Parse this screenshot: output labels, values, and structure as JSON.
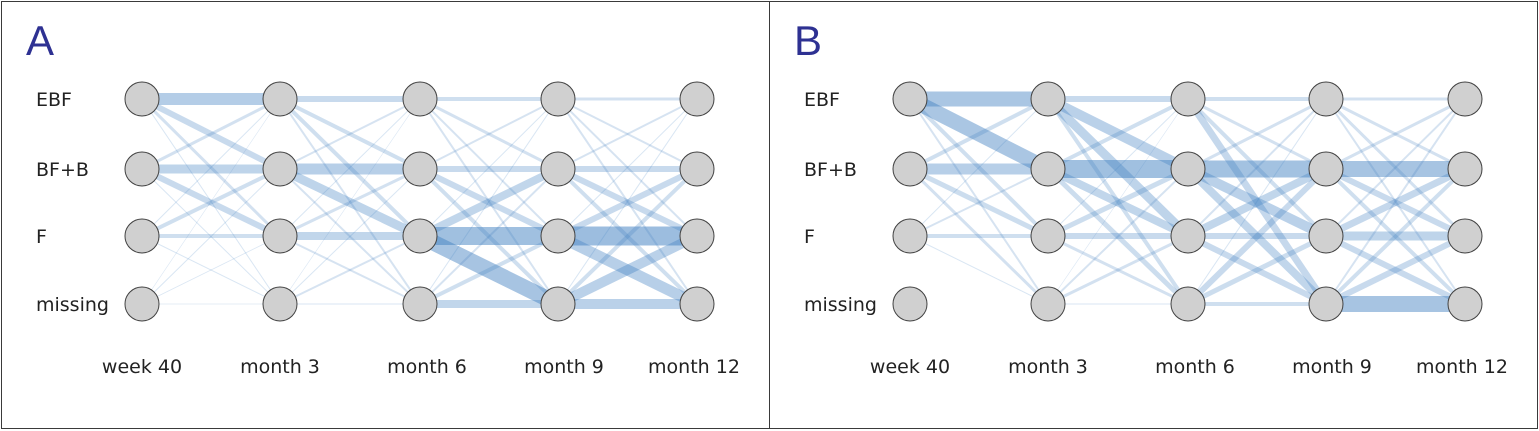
{
  "panels": [
    {
      "letter": "A",
      "rows": [
        "EBF",
        "BF+B",
        "F",
        "missing"
      ],
      "columns": [
        "week 40",
        "month 3",
        "month 6",
        "month 9",
        "month 12"
      ],
      "link_color": "#3f7fc0",
      "node_color": "#d0d0d0",
      "nodes_present": [
        [
          1,
          1,
          1,
          1
        ],
        [
          1,
          1,
          1,
          1
        ],
        [
          1,
          1,
          1,
          1
        ],
        [
          1,
          1,
          1,
          1
        ],
        [
          1,
          1,
          1,
          1
        ]
      ],
      "transitions": [
        [
          [
            0.6,
            0.3,
            0.15,
            0.05
          ],
          [
            0.15,
            0.45,
            0.3,
            0.05
          ],
          [
            0.05,
            0.2,
            0.2,
            0.05
          ],
          [
            0.03,
            0.05,
            0.04,
            0.04
          ]
        ],
        [
          [
            0.3,
            0.2,
            0.2,
            0.1
          ],
          [
            0.1,
            0.55,
            0.45,
            0.1
          ],
          [
            0.05,
            0.15,
            0.4,
            0.1
          ],
          [
            0.03,
            0.05,
            0.1,
            0.05
          ]
        ],
        [
          [
            0.2,
            0.15,
            0.1,
            0.1
          ],
          [
            0.1,
            0.3,
            0.3,
            0.2
          ],
          [
            0.05,
            0.4,
            0.9,
            0.8
          ],
          [
            0.05,
            0.1,
            0.2,
            0.4
          ]
        ],
        [
          [
            0.15,
            0.1,
            0.1,
            0.1
          ],
          [
            0.1,
            0.3,
            0.3,
            0.2
          ],
          [
            0.05,
            0.3,
            0.95,
            0.55
          ],
          [
            0.05,
            0.2,
            0.5,
            0.5
          ]
        ]
      ]
    },
    {
      "letter": "B",
      "rows": [
        "EBF",
        "BF+B",
        "F",
        "missing"
      ],
      "columns": [
        "week 40",
        "month 3",
        "month 6",
        "month 9",
        "month 12"
      ],
      "link_color": "#3f7fc0",
      "node_color": "#d0d0d0",
      "nodes_present": [
        [
          1,
          1,
          1,
          1
        ],
        [
          1,
          1,
          1,
          1
        ],
        [
          1,
          1,
          1,
          1
        ],
        [
          1,
          1,
          1,
          1
        ],
        [
          1,
          1,
          1,
          1
        ]
      ],
      "transitions": [
        [
          [
            0.75,
            0.75,
            0.2,
            0.1
          ],
          [
            0.2,
            0.55,
            0.25,
            0.15
          ],
          [
            0.05,
            0.1,
            0.2,
            0.05
          ],
          [
            0,
            0,
            0,
            0
          ]
        ],
        [
          [
            0.3,
            0.5,
            0.45,
            0.2
          ],
          [
            0.2,
            0.9,
            0.4,
            0.25
          ],
          [
            0.05,
            0.25,
            0.3,
            0.15
          ],
          [
            0.03,
            0.1,
            0.15,
            0.05
          ]
        ],
        [
          [
            0.2,
            0.15,
            0.2,
            0.35
          ],
          [
            0.15,
            0.85,
            0.5,
            0.4
          ],
          [
            0.1,
            0.4,
            0.3,
            0.3
          ],
          [
            0.05,
            0.3,
            0.25,
            0.2
          ]
        ],
        [
          [
            0.15,
            0.15,
            0.15,
            0.1
          ],
          [
            0.15,
            0.8,
            0.3,
            0.2
          ],
          [
            0.1,
            0.35,
            0.45,
            0.3
          ],
          [
            0.1,
            0.2,
            0.3,
            0.8
          ]
        ]
      ]
    }
  ]
}
